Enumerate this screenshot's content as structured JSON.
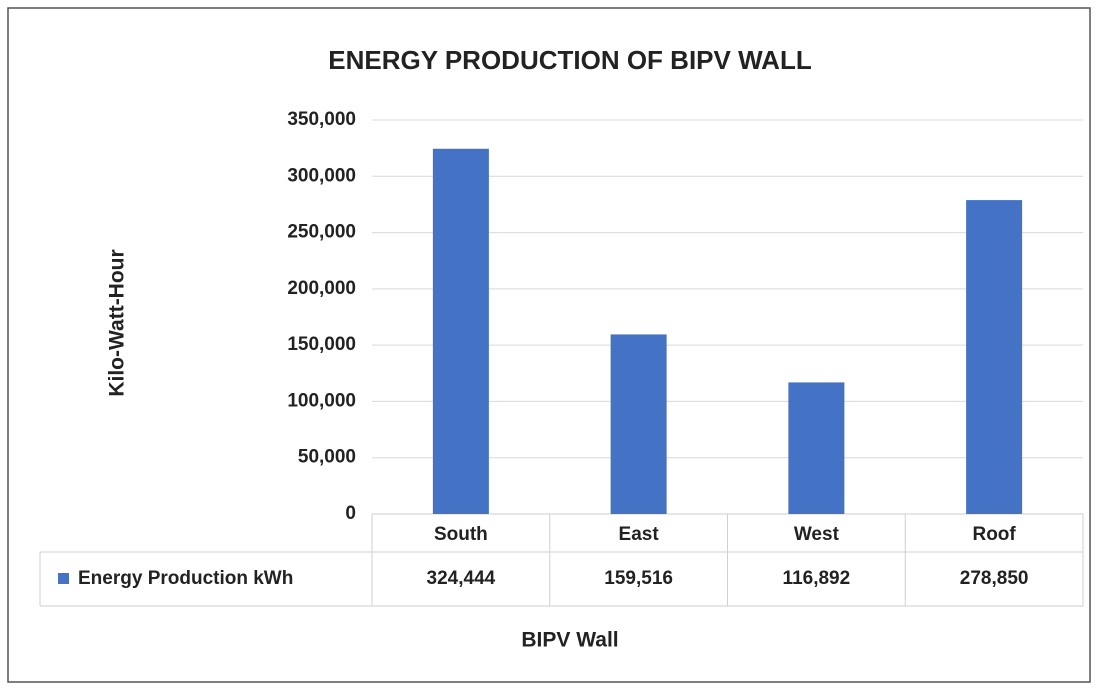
{
  "chart_data": {
    "type": "bar",
    "title": "ENERGY PRODUCTION  OF BIPV WALL",
    "x_label": "BIPV Wall",
    "y_label": "Kilo-Watt-Hour",
    "categories": [
      "South",
      "East",
      "West",
      "Roof"
    ],
    "series": [
      {
        "name": "Energy Production kWh",
        "color": "#4472c4",
        "values": [
          324444,
          159516,
          116892,
          278850
        ],
        "value_labels": [
          "324,444",
          "159,516",
          "116,892",
          "278,850"
        ]
      }
    ],
    "ylim": [
      0,
      350000
    ],
    "yticks": [
      0,
      {
        "value": 50000,
        "label": "50,000"
      },
      {
        "value": 100000,
        "label": "100,000"
      },
      {
        "value": 150000,
        "label": "150,000"
      },
      {
        "value": 200000,
        "label": "200,000"
      },
      {
        "value": 250000,
        "label": "250,000"
      },
      {
        "value": 300000,
        "label": "300,000"
      },
      {
        "value": 350000,
        "label": "350,000"
      }
    ],
    "grid": true
  }
}
